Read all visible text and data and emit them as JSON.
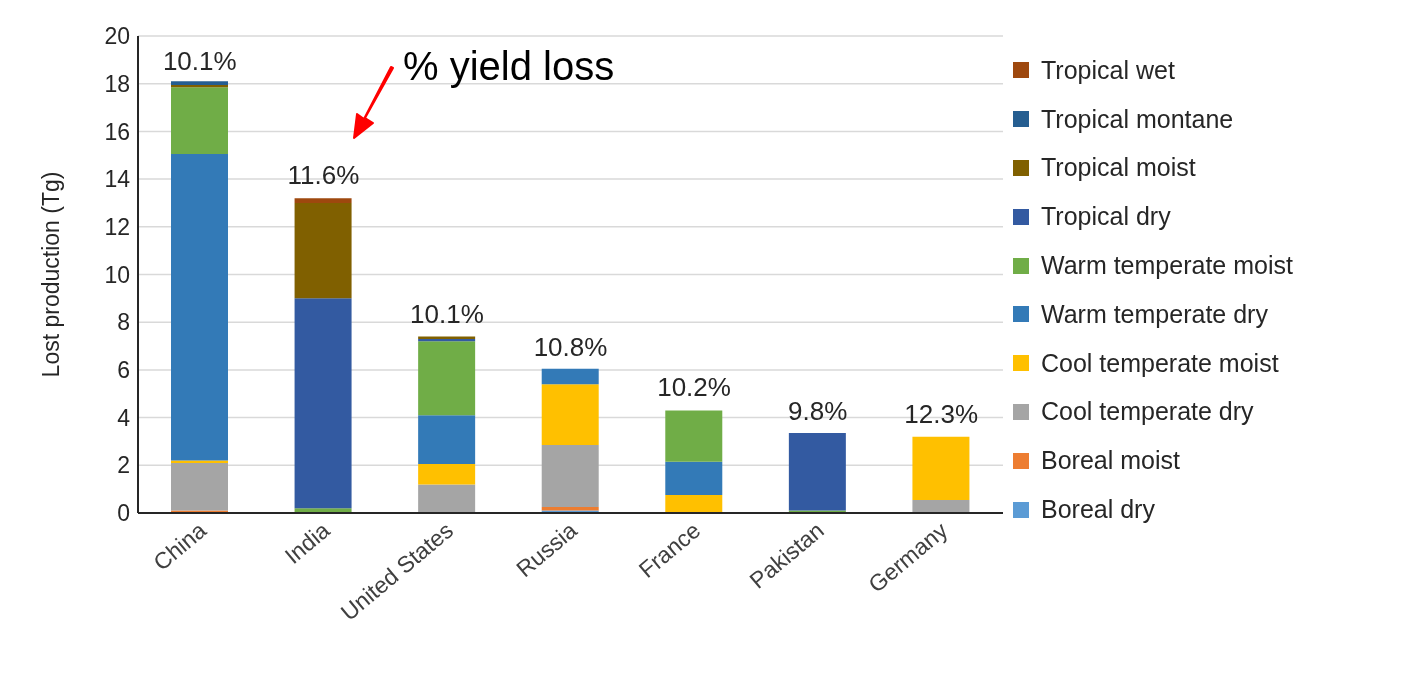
{
  "chart_data": {
    "type": "bar",
    "stacked": true,
    "ylabel": "Lost production (Tg)",
    "categories": [
      "China",
      "India",
      "United States",
      "Russia",
      "France",
      "Pakistan",
      "Germany"
    ],
    "series": [
      {
        "name": "Boreal dry",
        "color": "#5b9bd5",
        "values": [
          0,
          0,
          0,
          0.1,
          0,
          0,
          0
        ]
      },
      {
        "name": "Boreal moist",
        "color": "#ed7d31",
        "values": [
          0.1,
          0,
          0,
          0.15,
          0,
          0,
          0
        ]
      },
      {
        "name": "Cool temperate dry",
        "color": "#a5a5a5",
        "values": [
          2.0,
          0,
          1.2,
          2.6,
          0,
          0,
          0.55
        ]
      },
      {
        "name": "Cool temperate moist",
        "color": "#ffc000",
        "values": [
          0.1,
          0,
          0.85,
          2.55,
          0.75,
          0,
          2.65
        ]
      },
      {
        "name": "Warm temperate dry",
        "color": "#337ab7",
        "values": [
          12.85,
          0,
          2.05,
          0.65,
          1.4,
          0,
          0
        ]
      },
      {
        "name": "Warm temperate moist",
        "color": "#70ad47",
        "values": [
          2.8,
          0.2,
          3.1,
          0,
          2.15,
          0.1,
          0
        ]
      },
      {
        "name": "Tropical dry",
        "color": "#335aa1",
        "values": [
          0,
          8.8,
          0.1,
          0,
          0,
          3.25,
          0
        ]
      },
      {
        "name": "Tropical moist",
        "color": "#806000",
        "values": [
          0.1,
          4.0,
          0.1,
          0,
          0,
          0,
          0
        ]
      },
      {
        "name": "Tropical montane",
        "color": "#255e91",
        "values": [
          0.15,
          0,
          0,
          0,
          0,
          0,
          0
        ]
      },
      {
        "name": "Tropical wet",
        "color": "#9e480e",
        "values": [
          0,
          0.2,
          0,
          0,
          0,
          0,
          0
        ]
      }
    ],
    "annotations": [
      "% yield loss",
      {
        "text": "10.1%",
        "x": "China",
        "y": 18.0
      },
      {
        "text": "11.6%",
        "x": "India",
        "y": 13.2
      },
      {
        "text": "10.1%",
        "x": "United States",
        "y": 7.4
      },
      {
        "text": "10.8%",
        "x": "Russia",
        "y": 6.0
      },
      {
        "text": "10.2%",
        "x": "France",
        "y": 4.3
      },
      {
        "text": "9.8%",
        "x": "Pakistan",
        "y": 3.3
      },
      {
        "text": "12.3%",
        "x": "Germany",
        "y": 3.2
      }
    ],
    "ylim": [
      0,
      20
    ],
    "yticks": [
      0,
      2,
      4,
      6,
      8,
      10,
      12,
      14,
      16,
      18,
      20
    ],
    "grid": "y",
    "legend": "right"
  }
}
